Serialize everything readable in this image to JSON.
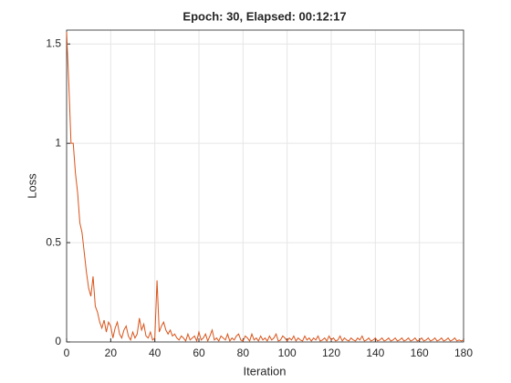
{
  "chart_data": {
    "type": "line",
    "title": "Epoch: 30, Elapsed: 00:12:17",
    "x_label": "Iteration",
    "y_label": "Loss",
    "x": [
      0,
      1,
      2,
      3,
      4,
      5,
      6,
      7,
      8,
      9,
      10,
      11,
      12,
      13,
      14,
      15,
      16,
      17,
      18,
      19,
      20,
      21,
      22,
      23,
      24,
      25,
      26,
      27,
      28,
      29,
      30,
      31,
      32,
      33,
      34,
      35,
      36,
      37,
      38,
      39,
      40,
      41,
      42,
      43,
      44,
      45,
      46,
      47,
      48,
      49,
      50,
      51,
      52,
      53,
      54,
      55,
      56,
      57,
      58,
      59,
      60,
      61,
      62,
      63,
      64,
      65,
      66,
      67,
      68,
      69,
      70,
      71,
      72,
      73,
      74,
      75,
      76,
      77,
      78,
      79,
      80,
      81,
      82,
      83,
      84,
      85,
      86,
      87,
      88,
      89,
      90,
      91,
      92,
      93,
      94,
      95,
      96,
      97,
      98,
      99,
      100,
      101,
      102,
      103,
      104,
      105,
      106,
      107,
      108,
      109,
      110,
      111,
      112,
      113,
      114,
      115,
      116,
      117,
      118,
      119,
      120,
      121,
      122,
      123,
      124,
      125,
      126,
      127,
      128,
      129,
      130,
      131,
      132,
      133,
      134,
      135,
      136,
      137,
      138,
      139,
      140,
      141,
      142,
      143,
      144,
      145,
      146,
      147,
      148,
      149,
      150,
      151,
      152,
      153,
      154,
      155,
      156,
      157,
      158,
      159,
      160,
      161,
      162,
      163,
      164,
      165,
      166,
      167,
      168,
      169,
      170,
      171,
      172,
      173,
      174,
      175,
      176,
      177,
      178,
      179,
      180
    ],
    "series": [
      {
        "color": "#d95319",
        "values": [
          1.56,
          1.3,
          1.0,
          1.0,
          0.85,
          0.75,
          0.6,
          0.55,
          0.45,
          0.35,
          0.27,
          0.23,
          0.33,
          0.18,
          0.15,
          0.1,
          0.07,
          0.11,
          0.05,
          0.1,
          0.08,
          0.02,
          0.07,
          0.1,
          0.04,
          0.02,
          0.06,
          0.08,
          0.03,
          0.01,
          0.05,
          0.02,
          0.04,
          0.12,
          0.06,
          0.09,
          0.03,
          0.02,
          0.05,
          0.01,
          0.02,
          0.31,
          0.05,
          0.08,
          0.1,
          0.06,
          0.04,
          0.06,
          0.03,
          0.04,
          0.02,
          0.01,
          0.03,
          0.02,
          0.005,
          0.04,
          0.01,
          0.02,
          0.03,
          0.005,
          0.05,
          0.01,
          0.02,
          0.04,
          0.005,
          0.03,
          0.06,
          0.01,
          0.02,
          0.005,
          0.03,
          0.02,
          0.01,
          0.04,
          0.005,
          0.02,
          0.01,
          0.03,
          0.04,
          0.01,
          0.005,
          0.03,
          0.02,
          0.005,
          0.04,
          0.01,
          0.02,
          0.005,
          0.03,
          0.01,
          0.02,
          0.005,
          0.03,
          0.01,
          0.02,
          0.04,
          0.005,
          0.01,
          0.03,
          0.02,
          0.005,
          0.02,
          0.01,
          0.03,
          0.005,
          0.02,
          0.01,
          0.005,
          0.03,
          0.01,
          0.02,
          0.005,
          0.02,
          0.01,
          0.03,
          0.005,
          0.01,
          0.02,
          0.005,
          0.03,
          0.01,
          0.02,
          0.005,
          0.01,
          0.03,
          0.005,
          0.02,
          0.01,
          0.005,
          0.02,
          0.01,
          0.005,
          0.02,
          0.01,
          0.03,
          0.005,
          0.01,
          0.02,
          0.005,
          0.01,
          0.02,
          0.005,
          0.01,
          0.02,
          0.005,
          0.01,
          0.02,
          0.005,
          0.01,
          0.02,
          0.005,
          0.01,
          0.02,
          0.005,
          0.01,
          0.02,
          0.005,
          0.01,
          0.02,
          0.005,
          0.01,
          0.02,
          0.005,
          0.01,
          0.02,
          0.005,
          0.01,
          0.02,
          0.005,
          0.01,
          0.02,
          0.005,
          0.01,
          0.02,
          0.005,
          0.01,
          0.02,
          0.005,
          0.01,
          0.005,
          0.01
        ]
      }
    ],
    "xlim": [
      0,
      180
    ],
    "xticks": [
      0,
      20,
      40,
      60,
      80,
      100,
      120,
      140,
      160,
      180
    ],
    "ylim": [
      0,
      1.57
    ],
    "yticks": [
      0,
      0.5,
      1,
      1.5
    ],
    "grid": true
  }
}
